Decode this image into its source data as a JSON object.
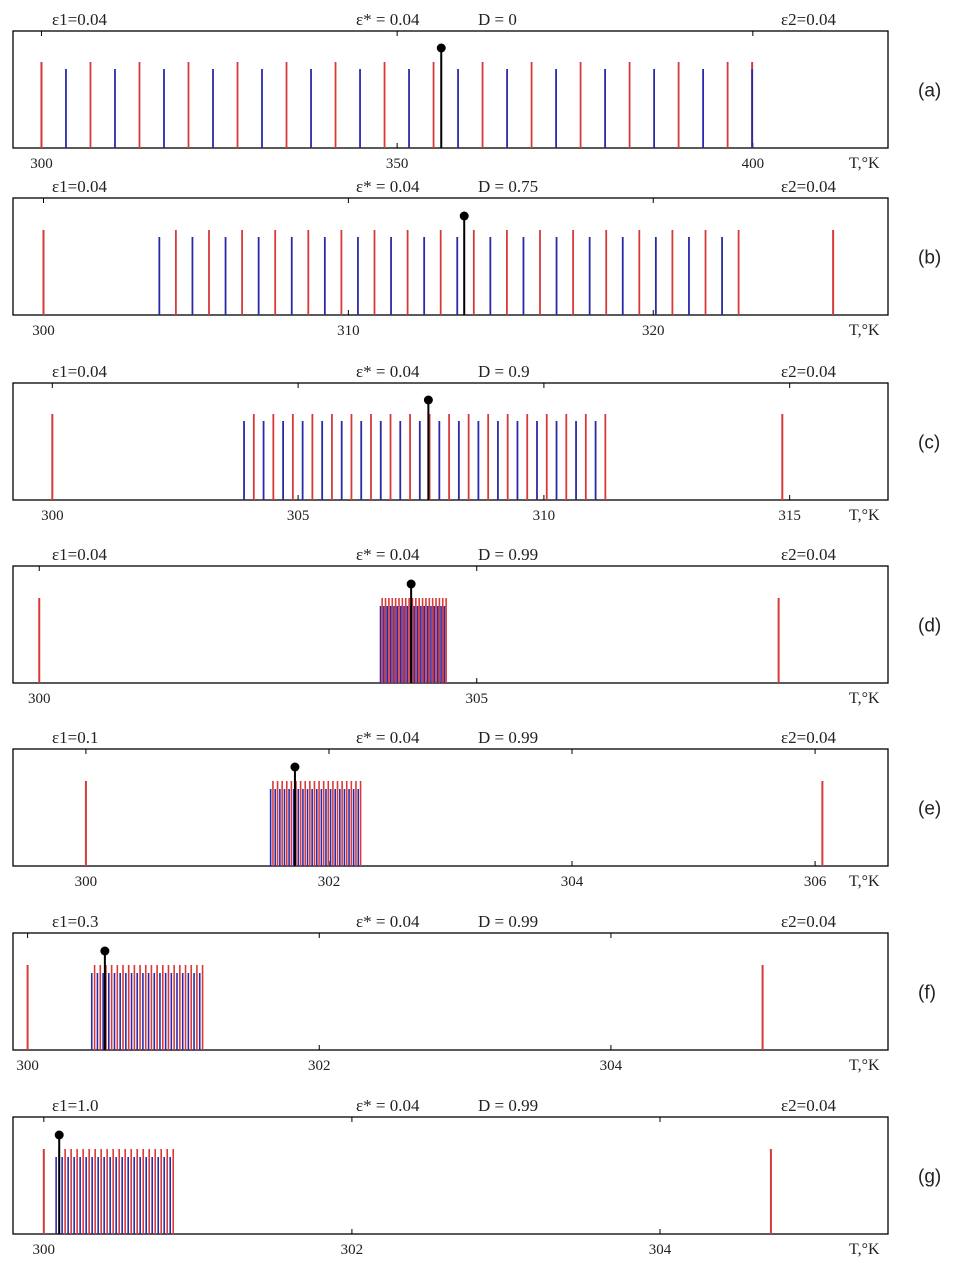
{
  "colors": {
    "red": "#d83a3a",
    "blue": "#2a2aa8",
    "black": "#000000"
  },
  "unit_label": "T,°K",
  "chart_data": [
    {
      "type": "spectrum",
      "panel_label": "(a)",
      "top_labels": {
        "eps1": "ε1=0.04",
        "eps_star": "ε* = 0.04",
        "d": "D = 0",
        "eps2": "ε2=0.04"
      },
      "xlim": [
        296,
        419
      ],
      "xticks": [
        300,
        350,
        400
      ],
      "tick_labels": [
        "300",
        "350",
        "400"
      ],
      "end_lines": [
        300,
        399.9
      ],
      "marker": 356.2,
      "cluster": {
        "start": 300,
        "end": 399.9,
        "n": 30,
        "start_color": "red"
      }
    },
    {
      "type": "spectrum",
      "panel_label": "(b)",
      "top_labels": {
        "eps1": "ε1=0.04",
        "eps_star": "ε* = 0.04",
        "d": "D = 0.75",
        "eps2": "ε2=0.04"
      },
      "xlim": [
        299.0,
        327.7
      ],
      "xticks": [
        300,
        310,
        320
      ],
      "tick_labels": [
        "300",
        "310",
        "320"
      ],
      "end_lines": [
        300,
        325.9
      ],
      "marker": 313.8,
      "cluster": {
        "start": 303.8,
        "end": 322.8,
        "n": 36,
        "start_color": "blue"
      }
    },
    {
      "type": "spectrum",
      "panel_label": "(c)",
      "top_labels": {
        "eps1": "ε1=0.04",
        "eps_star": "ε* = 0.04",
        "d": "D = 0.9",
        "eps2": "ε2=0.04"
      },
      "xlim": [
        299.2,
        317.0
      ],
      "xticks": [
        300,
        305,
        310,
        315
      ],
      "tick_labels": [
        "300",
        "305",
        "310",
        "315"
      ],
      "end_lines": [
        300,
        314.85
      ],
      "marker": 307.65,
      "cluster": {
        "start": 303.9,
        "end": 311.25,
        "n": 38,
        "start_color": "blue"
      }
    },
    {
      "type": "spectrum",
      "panel_label": "(d)",
      "top_labels": {
        "eps1": "ε1=0.04",
        "eps_star": "ε* = 0.04",
        "d": "D = 0.99",
        "eps2": "ε2=0.04"
      },
      "xlim": [
        299.7,
        309.7
      ],
      "xticks": [
        300,
        305
      ],
      "tick_labels": [
        "300",
        "305"
      ],
      "end_lines": [
        300,
        308.45
      ],
      "marker": 304.25,
      "cluster": {
        "start": 303.9,
        "end": 304.65,
        "n": 40,
        "start_color": "blue"
      }
    },
    {
      "type": "spectrum",
      "panel_label": "(e)",
      "top_labels": {
        "eps1": "ε1=0.1",
        "eps_star": "ε* = 0.04",
        "d": "D = 0.99",
        "eps2": "ε2=0.04"
      },
      "xlim": [
        299.4,
        306.6
      ],
      "xticks": [
        300,
        302,
        304,
        306
      ],
      "tick_labels": [
        "300",
        "302",
        "304",
        "306"
      ],
      "end_lines": [
        300,
        306.06
      ],
      "marker": 301.72,
      "cluster": {
        "start": 301.52,
        "end": 302.26,
        "n": 40,
        "start_color": "blue"
      }
    },
    {
      "type": "spectrum",
      "panel_label": "(f)",
      "top_labels": {
        "eps1": "ε1=0.3",
        "eps_star": "ε* = 0.04",
        "d": "D = 0.99",
        "eps2": "ε2=0.04"
      },
      "xlim": [
        299.9,
        305.9
      ],
      "xticks": [
        300,
        302,
        304
      ],
      "tick_labels": [
        "300",
        "302",
        "304"
      ],
      "end_lines": [
        300,
        305.04
      ],
      "marker": 300.53,
      "cluster": {
        "start": 300.44,
        "end": 301.2,
        "n": 40,
        "start_color": "blue"
      }
    },
    {
      "type": "spectrum",
      "panel_label": "(g)",
      "top_labels": {
        "eps1": "ε1=1.0",
        "eps_star": "ε* = 0.04",
        "d": "D = 0.99",
        "eps2": "ε2=0.04"
      },
      "xlim": [
        299.8,
        305.48
      ],
      "xticks": [
        300,
        302,
        304
      ],
      "tick_labels": [
        "300",
        "302",
        "304"
      ],
      "end_lines": [
        300,
        304.72
      ],
      "marker": 300.1,
      "cluster": {
        "start": 300.08,
        "end": 300.84,
        "n": 40,
        "start_color": "blue"
      }
    }
  ]
}
